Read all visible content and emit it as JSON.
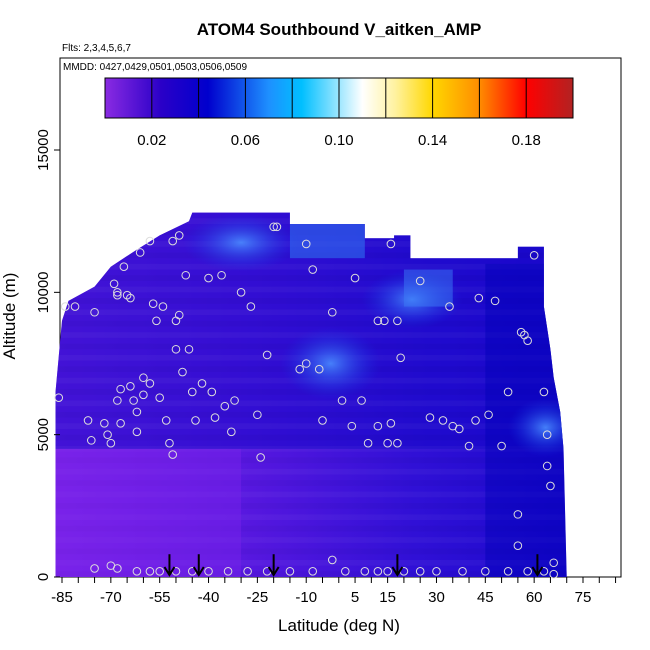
{
  "chart_data": {
    "type": "heatmap",
    "title": "ATOM4 Southbound V_aitken_AMP",
    "subtitle_flights": "Flts: 2,3,4,5,6,7",
    "subtitle_dates": "MMDD: 0427,0429,0501,0503,0506,0509",
    "xlabel": "Latitude (deg N)",
    "ylabel": "Altitude (m)",
    "xlim": [
      -88,
      93
    ],
    "ylim": [
      0,
      17500
    ],
    "x_ticks": [
      -85,
      -70,
      -55,
      -40,
      -25,
      -10,
      5,
      15,
      30,
      45,
      60,
      75
    ],
    "x_ticks_minor": [
      -80,
      -75,
      -65,
      -60,
      -50,
      -45,
      -35,
      -30,
      -20,
      -15,
      -5,
      0,
      10,
      20,
      25,
      35,
      40,
      50,
      55,
      65,
      70,
      80,
      85,
      90
    ],
    "y_ticks": [
      0,
      5000,
      10000,
      15000
    ],
    "colorbar": {
      "range": [
        0.0,
        0.2
      ],
      "tick_values": [
        0.02,
        0.06,
        0.1,
        0.14,
        0.18
      ],
      "tick_labels": [
        "0.02",
        "0.06",
        "0.10",
        "0.14",
        "0.18"
      ],
      "divisions": [
        0.02,
        0.04,
        0.06,
        0.08,
        0.1,
        0.12,
        0.14,
        0.16,
        0.18,
        0.2
      ],
      "colors": [
        "#8a2be2",
        "#0000cd",
        "#1e90ff",
        "#00bfff",
        "#ffffff",
        "#ffd700",
        "#ff8c00",
        "#ff0000",
        "#b22222"
      ]
    },
    "grid": false,
    "arrow_latitudes": [
      -52,
      -43,
      -20,
      18,
      61
    ],
    "high_value_patches": [
      {
        "x": [
          -45,
          -15
        ],
        "y": [
          11000,
          12500
        ],
        "value": 0.06
      },
      {
        "x": [
          -15,
          10
        ],
        "y": [
          6500,
          8500
        ],
        "value": 0.05
      },
      {
        "x": [
          10,
          35
        ],
        "y": [
          9000,
          10500
        ],
        "value": 0.045
      },
      {
        "x": [
          55,
          72
        ],
        "y": [
          4500,
          6000
        ],
        "value": 0.05
      }
    ],
    "sample_points": [
      [
        -86,
        6300
      ],
      [
        -84,
        9500
      ],
      [
        -81,
        9500
      ],
      [
        -77,
        5500
      ],
      [
        -76,
        4800
      ],
      [
        -75,
        9300
      ],
      [
        -72,
        5400
      ],
      [
        -71,
        5000
      ],
      [
        -70,
        4700
      ],
      [
        -69,
        10300
      ],
      [
        -68,
        10000
      ],
      [
        -68,
        9900
      ],
      [
        -68,
        6200
      ],
      [
        -67,
        6600
      ],
      [
        -67,
        5400
      ],
      [
        -66,
        10900
      ],
      [
        -65,
        9900
      ],
      [
        -64,
        9800
      ],
      [
        -64,
        6700
      ],
      [
        -63,
        6200
      ],
      [
        -62,
        5800
      ],
      [
        -62,
        5100
      ],
      [
        -61,
        11400
      ],
      [
        -60,
        6400
      ],
      [
        -60,
        7000
      ],
      [
        -58,
        11800
      ],
      [
        -58,
        6800
      ],
      [
        -57,
        9600
      ],
      [
        -56,
        9000
      ],
      [
        -55,
        6300
      ],
      [
        -54,
        9500
      ],
      [
        -53,
        5500
      ],
      [
        -52,
        4700
      ],
      [
        -51,
        4300
      ],
      [
        -51,
        11800
      ],
      [
        -50,
        9000
      ],
      [
        -50,
        8000
      ],
      [
        -49,
        12000
      ],
      [
        -49,
        9200
      ],
      [
        -48,
        7200
      ],
      [
        -47,
        10600
      ],
      [
        -46,
        8000
      ],
      [
        -45,
        6500
      ],
      [
        -44,
        5500
      ],
      [
        -42,
        6800
      ],
      [
        -40,
        10500
      ],
      [
        -39,
        6500
      ],
      [
        -38,
        5600
      ],
      [
        -36,
        10600
      ],
      [
        -35,
        6000
      ],
      [
        -33,
        5100
      ],
      [
        -32,
        6200
      ],
      [
        -30,
        10000
      ],
      [
        -27,
        9500
      ],
      [
        -25,
        5700
      ],
      [
        -24,
        4200
      ],
      [
        -22,
        7800
      ],
      [
        -20,
        12300
      ],
      [
        -19,
        12300
      ],
      [
        -12,
        7300
      ],
      [
        -10,
        11700
      ],
      [
        -10,
        7500
      ],
      [
        -8,
        10800
      ],
      [
        -6,
        7300
      ],
      [
        -5,
        5500
      ],
      [
        -2,
        9300
      ],
      [
        1,
        6200
      ],
      [
        4,
        5300
      ],
      [
        5,
        10500
      ],
      [
        7,
        6200
      ],
      [
        9,
        4700
      ],
      [
        12,
        5300
      ],
      [
        12,
        9000
      ],
      [
        14,
        9000
      ],
      [
        15,
        4700
      ],
      [
        16,
        11700
      ],
      [
        16,
        5400
      ],
      [
        18,
        4700
      ],
      [
        18,
        9000
      ],
      [
        19,
        7700
      ],
      [
        25,
        10400
      ],
      [
        28,
        5600
      ],
      [
        32,
        5500
      ],
      [
        34,
        9500
      ],
      [
        35,
        5300
      ],
      [
        37,
        5200
      ],
      [
        40,
        4600
      ],
      [
        42,
        5500
      ],
      [
        43,
        9800
      ],
      [
        46,
        5700
      ],
      [
        48,
        9700
      ],
      [
        50,
        4600
      ],
      [
        52,
        6500
      ],
      [
        55,
        1100
      ],
      [
        55,
        2200
      ],
      [
        56,
        8600
      ],
      [
        57,
        8500
      ],
      [
        58,
        8300
      ],
      [
        60,
        11300
      ],
      [
        63,
        6500
      ],
      [
        64,
        5000
      ],
      [
        64,
        3900
      ],
      [
        65,
        3200
      ],
      [
        66,
        500
      ],
      [
        -75,
        300
      ],
      [
        -70,
        400
      ],
      [
        -68,
        300
      ],
      [
        -62,
        200
      ],
      [
        -58,
        200
      ],
      [
        -55,
        200
      ],
      [
        -50,
        200
      ],
      [
        -45,
        200
      ],
      [
        -40,
        200
      ],
      [
        -34,
        200
      ],
      [
        -28,
        200
      ],
      [
        -22,
        200
      ],
      [
        -15,
        200
      ],
      [
        -8,
        200
      ],
      [
        -2,
        600
      ],
      [
        2,
        200
      ],
      [
        8,
        200
      ],
      [
        12,
        200
      ],
      [
        15,
        200
      ],
      [
        20,
        200
      ],
      [
        25,
        200
      ],
      [
        30,
        200
      ],
      [
        38,
        200
      ],
      [
        45,
        200
      ],
      [
        52,
        200
      ],
      [
        58,
        200
      ],
      [
        63,
        200
      ],
      [
        66,
        100
      ]
    ]
  }
}
